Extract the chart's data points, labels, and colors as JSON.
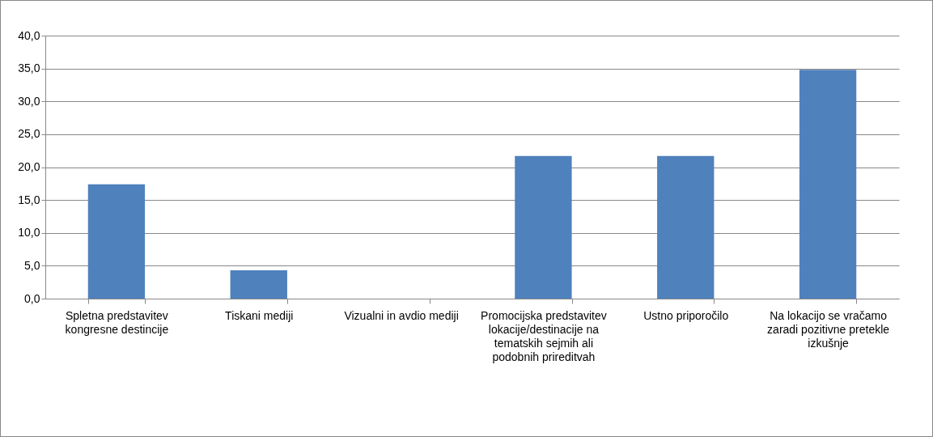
{
  "chart_data": {
    "type": "bar",
    "categories": [
      "Spletna predstavitev kongresne destincije",
      "Tiskani mediji",
      "Vizualni in avdio mediji",
      "Promocijska predstavitev lokacije/destinacije na tematskih sejmih ali podobnih prireditvah",
      "Ustno priporočilo",
      "Na lokacijo se vračamo zaradi pozitivne pretekle izkušnje"
    ],
    "values": [
      17.4,
      4.3,
      0,
      21.7,
      21.7,
      34.8
    ],
    "color": "#4f81bd",
    "ylim": [
      0,
      40
    ],
    "yticks": [
      {
        "value": 0,
        "label": "0,0"
      },
      {
        "value": 5,
        "label": "5,0"
      },
      {
        "value": 10,
        "label": "10,0"
      },
      {
        "value": 15,
        "label": "15,0"
      },
      {
        "value": 20,
        "label": "20,0"
      },
      {
        "value": 25,
        "label": "25,0"
      },
      {
        "value": 30,
        "label": "30,0"
      },
      {
        "value": 35,
        "label": "35,0"
      },
      {
        "value": 40,
        "label": "40,0"
      }
    ],
    "grid": "y"
  }
}
